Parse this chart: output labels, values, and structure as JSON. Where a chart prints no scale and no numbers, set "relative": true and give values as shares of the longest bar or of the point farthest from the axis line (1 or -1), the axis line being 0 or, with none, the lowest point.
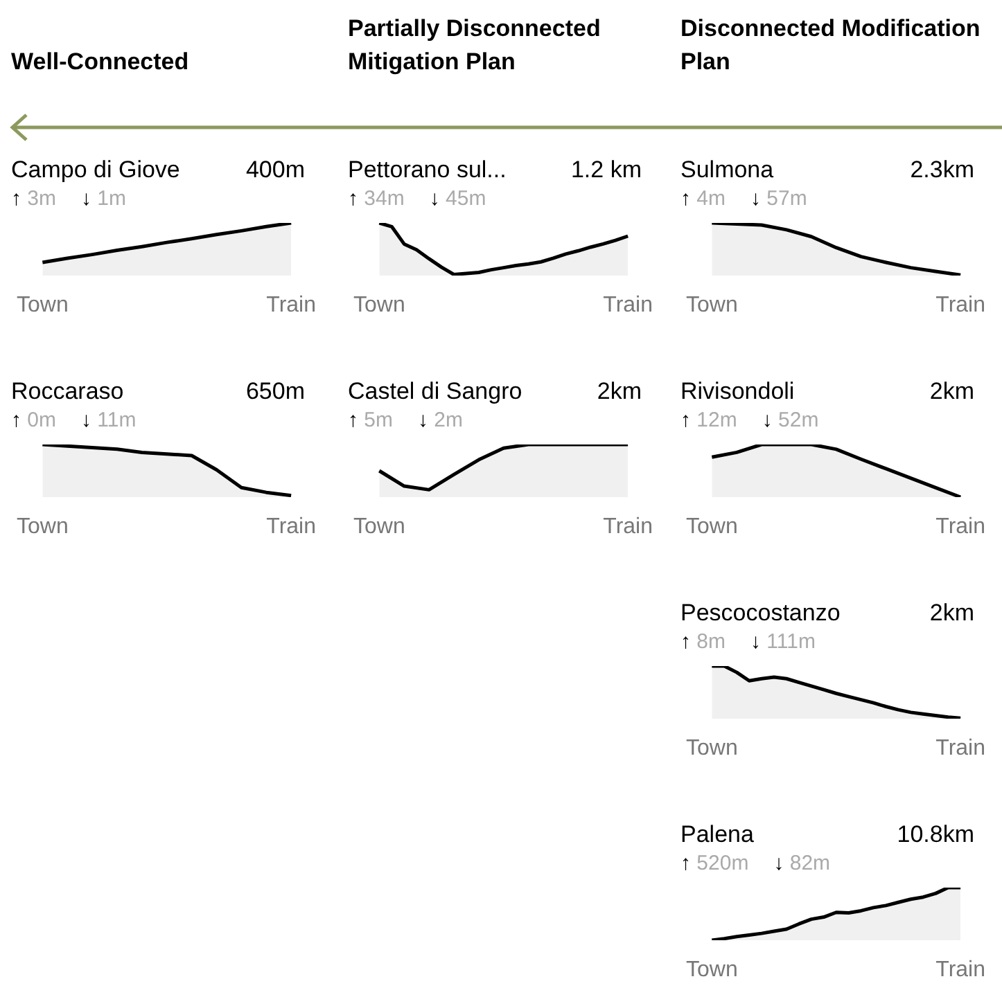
{
  "chart_data": [
    {
      "type": "other",
      "annotations": [
        "Well-Connected",
        "Partially Disconnected Mitigation Plan",
        "Disconnected Modification Plan"
      ]
    },
    {
      "type": "area",
      "title": "Campo di Giove",
      "annotations": [
        "400m",
        "↑ 3m",
        "↓ 1m"
      ],
      "relative": true,
      "categories": [
        "Town",
        null,
        null,
        null,
        null,
        null,
        null,
        null,
        null,
        null,
        "Train"
      ],
      "series": [
        {
          "color": "#000000",
          "values": [
            0.25,
            0.33,
            0.4,
            0.48,
            0.55,
            0.63,
            0.7,
            0.78,
            0.85,
            0.93,
            1
          ]
        }
      ]
    },
    {
      "type": "area",
      "title": "Pettorano sul...",
      "annotations": [
        "1.2 km",
        "↑ 34m",
        "↓ 45m"
      ],
      "relative": true,
      "categories": [
        "Town",
        null,
        null,
        null,
        null,
        null,
        null,
        null,
        null,
        null,
        null,
        null,
        null,
        null,
        null,
        null,
        null,
        null,
        null,
        null,
        "Train"
      ],
      "series": [
        {
          "color": "#000000",
          "values": [
            1,
            0.93,
            0.6,
            0.49,
            0.32,
            0.16,
            0.02,
            0.04,
            0.06,
            0.11,
            0.15,
            0.19,
            0.22,
            0.26,
            0.33,
            0.41,
            0.47,
            0.54,
            0.6,
            0.67,
            0.75
          ]
        }
      ]
    },
    {
      "type": "area",
      "title": "Sulmona",
      "annotations": [
        "2.3km",
        "↑ 4m",
        "↓ 57m"
      ],
      "relative": true,
      "categories": [
        "Town",
        null,
        null,
        null,
        null,
        null,
        null,
        null,
        null,
        null,
        "Train"
      ],
      "series": [
        {
          "color": "#000000",
          "values": [
            1,
            0.98,
            0.96,
            0.87,
            0.74,
            0.53,
            0.36,
            0.25,
            0.15,
            0.08,
            0.01
          ]
        }
      ]
    },
    {
      "type": "area",
      "title": "Roccaraso",
      "annotations": [
        "650m",
        "↑ 0m",
        "↓ 11m"
      ],
      "relative": true,
      "categories": [
        "Town",
        null,
        null,
        null,
        null,
        null,
        null,
        null,
        null,
        null,
        "Train"
      ],
      "series": [
        {
          "color": "#000000",
          "values": [
            1,
            0.97,
            0.94,
            0.91,
            0.85,
            0.82,
            0.79,
            0.52,
            0.18,
            0.09,
            0.03
          ]
        }
      ]
    },
    {
      "type": "area",
      "title": "Castel di Sangro",
      "annotations": [
        "2km",
        "↑ 5m",
        "↓ 2m"
      ],
      "relative": true,
      "categories": [
        "Town",
        null,
        null,
        null,
        null,
        null,
        null,
        null,
        null,
        null,
        "Train"
      ],
      "series": [
        {
          "color": "#000000",
          "values": [
            0.5,
            0.21,
            0.14,
            0.43,
            0.71,
            0.93,
            1,
            1,
            1,
            1,
            1
          ]
        }
      ]
    },
    {
      "type": "area",
      "title": "Rivisondoli",
      "annotations": [
        "2km",
        "↑ 12m",
        "↓ 52m"
      ],
      "relative": true,
      "categories": [
        "Town",
        null,
        null,
        null,
        null,
        null,
        null,
        null,
        null,
        null,
        "Train"
      ],
      "series": [
        {
          "color": "#000000",
          "values": [
            0.76,
            0.85,
            1,
            1,
            1,
            0.91,
            0.72,
            0.54,
            0.36,
            0.18,
            0
          ]
        }
      ]
    },
    {
      "type": "area",
      "title": "Pescocostanzo",
      "annotations": [
        "2km",
        "↑ 8m",
        "↓ 111m"
      ],
      "relative": true,
      "categories": [
        "Town",
        null,
        null,
        null,
        null,
        null,
        null,
        null,
        null,
        null,
        null,
        null,
        null,
        null,
        null,
        null,
        null,
        null,
        null,
        null,
        "Train"
      ],
      "series": [
        {
          "color": "#000000",
          "values": [
            1,
            1,
            0.88,
            0.72,
            0.76,
            0.79,
            0.76,
            0.69,
            0.62,
            0.55,
            0.48,
            0.42,
            0.36,
            0.3,
            0.23,
            0.17,
            0.12,
            0.09,
            0.06,
            0.03,
            0.01
          ]
        }
      ]
    },
    {
      "type": "area",
      "title": "Palena",
      "annotations": [
        "10.8km",
        "↑ 520m",
        "↓ 82m"
      ],
      "relative": true,
      "categories": [
        "Town",
        null,
        null,
        null,
        null,
        null,
        null,
        null,
        null,
        null,
        null,
        null,
        null,
        null,
        null,
        null,
        null,
        null,
        null,
        null,
        "Train"
      ],
      "series": [
        {
          "color": "#000000",
          "values": [
            0,
            0.03,
            0.07,
            0.1,
            0.13,
            0.17,
            0.21,
            0.31,
            0.4,
            0.44,
            0.53,
            0.52,
            0.56,
            0.62,
            0.66,
            0.72,
            0.78,
            0.82,
            0.89,
            1,
            1
          ]
        }
      ]
    }
  ]
}
